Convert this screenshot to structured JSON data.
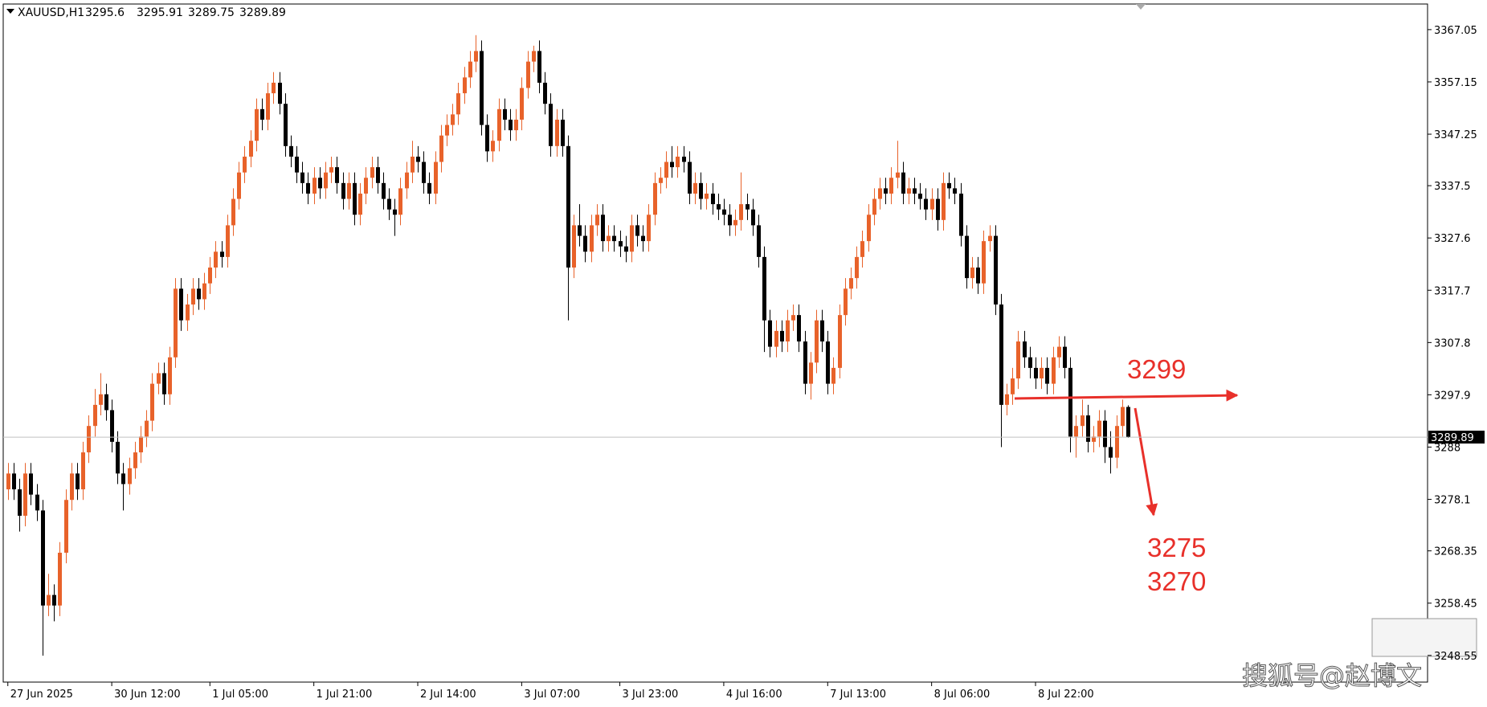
{
  "chart_data": {
    "type": "candlestick",
    "title": "XAUUSD,H1",
    "up_color": "#e8622a",
    "down_color": "#000000",
    "ylim": [
      3243.5,
      3371.9
    ],
    "yticks": [
      3248.55,
      3258.45,
      3268.35,
      3278.1,
      3288.0,
      3297.9,
      3307.8,
      3317.7,
      3327.6,
      3337.5,
      3347.25,
      3357.15,
      3367.05
    ],
    "xlim": [
      -0.8,
      245.9
    ],
    "xticks": [
      {
        "value": 0,
        "label": "27 Jun 2025"
      },
      {
        "value": 18,
        "label": "30 Jun 12:00"
      },
      {
        "value": 35,
        "label": "1 Jul 05:00"
      },
      {
        "value": 53,
        "label": "1 Jul 21:00"
      },
      {
        "value": 71,
        "label": "2 Jul 14:00"
      },
      {
        "value": 89,
        "label": "3 Jul 07:00"
      },
      {
        "value": 106,
        "label": "3 Jul 23:00"
      },
      {
        "value": 124,
        "label": "4 Jul 16:00"
      },
      {
        "value": 142,
        "label": "7 Jul 13:00"
      },
      {
        "value": 160,
        "label": "8 Jul 06:00"
      },
      {
        "value": 178,
        "label": "8 Jul 22:00"
      }
    ],
    "ohlc": [
      [
        3280,
        3285,
        3278,
        3283
      ],
      [
        3283,
        3285,
        3278,
        3280
      ],
      [
        3280,
        3282,
        3272,
        3275
      ],
      [
        3275,
        3285,
        3273,
        3283
      ],
      [
        3283,
        3285,
        3277,
        3279
      ],
      [
        3279,
        3281,
        3274,
        3276
      ],
      [
        3276,
        3278,
        3248.5,
        3258
      ],
      [
        3258,
        3264,
        3256,
        3260
      ],
      [
        3260,
        3262,
        3255,
        3258
      ],
      [
        3258,
        3270,
        3256,
        3268
      ],
      [
        3268,
        3280,
        3266,
        3278
      ],
      [
        3278,
        3285,
        3276,
        3283
      ],
      [
        3283,
        3285,
        3278,
        3280
      ],
      [
        3280,
        3289,
        3278,
        3287
      ],
      [
        3287,
        3294,
        3285,
        3292
      ],
      [
        3292,
        3299,
        3290,
        3296
      ],
      [
        3296,
        3302,
        3294,
        3298
      ],
      [
        3298,
        3300,
        3293,
        3295
      ],
      [
        3295,
        3297,
        3287,
        3289
      ],
      [
        3289,
        3291,
        3281,
        3283
      ],
      [
        3283,
        3285,
        3276,
        3281
      ],
      [
        3281,
        3286,
        3279,
        3284
      ],
      [
        3284,
        3289,
        3282,
        3287
      ],
      [
        3287,
        3292,
        3285,
        3290
      ],
      [
        3290,
        3295,
        3288,
        3293
      ],
      [
        3293,
        3302,
        3291,
        3300
      ],
      [
        3300,
        3304,
        3298,
        3302
      ],
      [
        3302,
        3304,
        3296,
        3298
      ],
      [
        3298,
        3307,
        3296,
        3305
      ],
      [
        3305,
        3320,
        3303,
        3318
      ],
      [
        3318,
        3320,
        3310,
        3312
      ],
      [
        3312,
        3317,
        3310,
        3315
      ],
      [
        3315,
        3320,
        3313,
        3318
      ],
      [
        3318,
        3320,
        3314,
        3316
      ],
      [
        3316,
        3321,
        3314,
        3319
      ],
      [
        3319,
        3324,
        3317,
        3322
      ],
      [
        3322,
        3327,
        3320,
        3325
      ],
      [
        3325,
        3327,
        3322,
        3324
      ],
      [
        3324,
        3332,
        3322,
        3330
      ],
      [
        3330,
        3337,
        3328,
        3335
      ],
      [
        3335,
        3342,
        3333,
        3340
      ],
      [
        3340,
        3345,
        3338,
        3343
      ],
      [
        3343,
        3348,
        3341,
        3346
      ],
      [
        3346,
        3354,
        3344,
        3352
      ],
      [
        3352,
        3354,
        3348,
        3350
      ],
      [
        3350,
        3357,
        3348,
        3355
      ],
      [
        3355,
        3359,
        3353,
        3357
      ],
      [
        3357,
        3359,
        3351,
        3353
      ],
      [
        3353,
        3355,
        3343,
        3345
      ],
      [
        3345,
        3347,
        3341,
        3343
      ],
      [
        3343,
        3345,
        3338,
        3340
      ],
      [
        3340,
        3342,
        3336,
        3338
      ],
      [
        3338,
        3340,
        3334,
        3336
      ],
      [
        3336,
        3341,
        3334,
        3339
      ],
      [
        3339,
        3341,
        3335,
        3337
      ],
      [
        3337,
        3342,
        3335,
        3340
      ],
      [
        3340,
        3343,
        3338,
        3341
      ],
      [
        3341,
        3343,
        3336,
        3338
      ],
      [
        3338,
        3340,
        3333,
        3335
      ],
      [
        3335,
        3340,
        3333,
        3338
      ],
      [
        3338,
        3340,
        3330,
        3332
      ],
      [
        3332,
        3338,
        3330,
        3336
      ],
      [
        3336,
        3341,
        3334,
        3339
      ],
      [
        3339,
        3343,
        3337,
        3341
      ],
      [
        3341,
        3343,
        3336,
        3338
      ],
      [
        3338,
        3340,
        3333,
        3335
      ],
      [
        3335,
        3337,
        3331,
        3333
      ],
      [
        3333,
        3335,
        3328,
        3332
      ],
      [
        3332,
        3339,
        3330,
        3337
      ],
      [
        3337,
        3342,
        3335,
        3340
      ],
      [
        3340,
        3346,
        3338,
        3343
      ],
      [
        3343,
        3345,
        3340,
        3342
      ],
      [
        3342,
        3344,
        3336,
        3338
      ],
      [
        3338,
        3340,
        3334,
        3336
      ],
      [
        3336,
        3344,
        3334,
        3342
      ],
      [
        3342,
        3349,
        3340,
        3347
      ],
      [
        3347,
        3351,
        3345,
        3349
      ],
      [
        3349,
        3353,
        3347,
        3351
      ],
      [
        3351,
        3357,
        3349,
        3355
      ],
      [
        3355,
        3360,
        3353,
        3358
      ],
      [
        3358,
        3363,
        3356,
        3361
      ],
      [
        3361,
        3366,
        3359,
        3363
      ],
      [
        3363,
        3365,
        3347,
        3349
      ],
      [
        3349,
        3351,
        3342,
        3344
      ],
      [
        3344,
        3348,
        3342,
        3346
      ],
      [
        3346,
        3354,
        3344,
        3352
      ],
      [
        3352,
        3354,
        3348,
        3350
      ],
      [
        3350,
        3352,
        3346,
        3348
      ],
      [
        3348,
        3352,
        3346,
        3350
      ],
      [
        3350,
        3358,
        3348,
        3356
      ],
      [
        3356,
        3363,
        3354,
        3361
      ],
      [
        3361,
        3364,
        3359,
        3363
      ],
      [
        3363,
        3365,
        3355,
        3357
      ],
      [
        3357,
        3359,
        3351,
        3353
      ],
      [
        3353,
        3355,
        3343,
        3345
      ],
      [
        3345,
        3352,
        3343,
        3350
      ],
      [
        3350,
        3352,
        3343,
        3345
      ],
      [
        3345,
        3347,
        3312,
        3322
      ],
      [
        3322,
        3332,
        3320,
        3330
      ],
      [
        3330,
        3334,
        3326,
        3328
      ],
      [
        3328,
        3330,
        3323,
        3325
      ],
      [
        3325,
        3332,
        3323,
        3330
      ],
      [
        3330,
        3334,
        3328,
        3332
      ],
      [
        3332,
        3334,
        3325,
        3327
      ],
      [
        3327,
        3330,
        3325,
        3328
      ],
      [
        3328,
        3330,
        3325,
        3327
      ],
      [
        3327,
        3329,
        3324,
        3326
      ],
      [
        3326,
        3328,
        3323,
        3325
      ],
      [
        3325,
        3332,
        3323,
        3330
      ],
      [
        3330,
        3332,
        3326,
        3328
      ],
      [
        3328,
        3330,
        3325,
        3327
      ],
      [
        3327,
        3334,
        3325,
        3332
      ],
      [
        3332,
        3340,
        3330,
        3338
      ],
      [
        3338,
        3341,
        3336,
        3339
      ],
      [
        3339,
        3344,
        3337,
        3342
      ],
      [
        3342,
        3345,
        3339,
        3341
      ],
      [
        3341,
        3345,
        3339,
        3343
      ],
      [
        3343,
        3345,
        3340,
        3342
      ],
      [
        3342,
        3344,
        3334,
        3336
      ],
      [
        3336,
        3340,
        3334,
        3338
      ],
      [
        3338,
        3340,
        3333,
        3335
      ],
      [
        3335,
        3338,
        3333,
        3336
      ],
      [
        3336,
        3338,
        3332,
        3334
      ],
      [
        3334,
        3336,
        3331,
        3333
      ],
      [
        3333,
        3335,
        3330,
        3332
      ],
      [
        3332,
        3334,
        3328,
        3330
      ],
      [
        3330,
        3333,
        3328,
        3331
      ],
      [
        3331,
        3340,
        3329,
        3334
      ],
      [
        3334,
        3336,
        3331,
        3333
      ],
      [
        3333,
        3335,
        3328,
        3330
      ],
      [
        3330,
        3332,
        3322,
        3324
      ],
      [
        3324,
        3326,
        3306,
        3312
      ],
      [
        3312,
        3314,
        3305,
        3307
      ],
      [
        3307,
        3312,
        3305,
        3310
      ],
      [
        3310,
        3312,
        3306,
        3308
      ],
      [
        3308,
        3314,
        3306,
        3312
      ],
      [
        3312,
        3315,
        3310,
        3313
      ],
      [
        3313,
        3315,
        3306,
        3308
      ],
      [
        3308,
        3310,
        3298,
        3300
      ],
      [
        3300,
        3306,
        3297,
        3304
      ],
      [
        3304,
        3314,
        3302,
        3312
      ],
      [
        3312,
        3314,
        3306,
        3308
      ],
      [
        3308,
        3310,
        3298,
        3300
      ],
      [
        3300,
        3305,
        3298,
        3303
      ],
      [
        3303,
        3315,
        3301,
        3313
      ],
      [
        3313,
        3320,
        3311,
        3318
      ],
      [
        3318,
        3322,
        3316,
        3320
      ],
      [
        3320,
        3326,
        3318,
        3324
      ],
      [
        3324,
        3329,
        3322,
        3327
      ],
      [
        3327,
        3334,
        3325,
        3332
      ],
      [
        3332,
        3337,
        3330,
        3335
      ],
      [
        3335,
        3339,
        3333,
        3337
      ],
      [
        3337,
        3339,
        3334,
        3336
      ],
      [
        3336,
        3341,
        3334,
        3339
      ],
      [
        3339,
        3346,
        3337,
        3340
      ],
      [
        3340,
        3342,
        3334,
        3336
      ],
      [
        3336,
        3339,
        3334,
        3337
      ],
      [
        3337,
        3339,
        3334,
        3336
      ],
      [
        3336,
        3338,
        3333,
        3335
      ],
      [
        3335,
        3337,
        3331,
        3333
      ],
      [
        3333,
        3337,
        3331,
        3335
      ],
      [
        3335,
        3337,
        3329,
        3331
      ],
      [
        3331,
        3340,
        3329,
        3338
      ],
      [
        3338,
        3340,
        3335,
        3337
      ],
      [
        3337,
        3339,
        3334,
        3336
      ],
      [
        3336,
        3338,
        3326,
        3328
      ],
      [
        3328,
        3330,
        3318,
        3320
      ],
      [
        3320,
        3324,
        3318,
        3322
      ],
      [
        3322,
        3324,
        3317,
        3319
      ],
      [
        3319,
        3329,
        3317,
        3327
      ],
      [
        3327,
        3330,
        3325,
        3328
      ],
      [
        3328,
        3330,
        3313,
        3315
      ],
      [
        3315,
        3317,
        3288,
        3296
      ],
      [
        3296,
        3300,
        3294,
        3298
      ],
      [
        3298,
        3303,
        3296,
        3301
      ],
      [
        3301,
        3310,
        3299,
        3308
      ],
      [
        3308,
        3310,
        3303,
        3305
      ],
      [
        3305,
        3307,
        3301,
        3303
      ],
      [
        3303,
        3305,
        3299,
        3301
      ],
      [
        3301,
        3305,
        3299,
        3303
      ],
      [
        3303,
        3305,
        3298,
        3300
      ],
      [
        3300,
        3307,
        3298,
        3305
      ],
      [
        3305,
        3309,
        3303,
        3307
      ],
      [
        3307,
        3309,
        3301,
        3303
      ],
      [
        3303,
        3305,
        3287,
        3290
      ],
      [
        3290,
        3294,
        3286,
        3292
      ],
      [
        3292,
        3297,
        3290,
        3294
      ],
      [
        3294,
        3296,
        3287,
        3289
      ],
      [
        3289,
        3292,
        3287,
        3290
      ],
      [
        3290,
        3295,
        3288,
        3293
      ],
      [
        3293,
        3295,
        3285,
        3288
      ],
      [
        3288,
        3291,
        3283,
        3286
      ],
      [
        3286,
        3294,
        3284,
        3292
      ],
      [
        3292,
        3297,
        3290,
        3295.6
      ],
      [
        3295.6,
        3295.91,
        3289.75,
        3289.89
      ]
    ],
    "annotations": [
      "3299",
      "3275",
      "3270"
    ],
    "watermark": "搜狐号@赵博文"
  }
}
